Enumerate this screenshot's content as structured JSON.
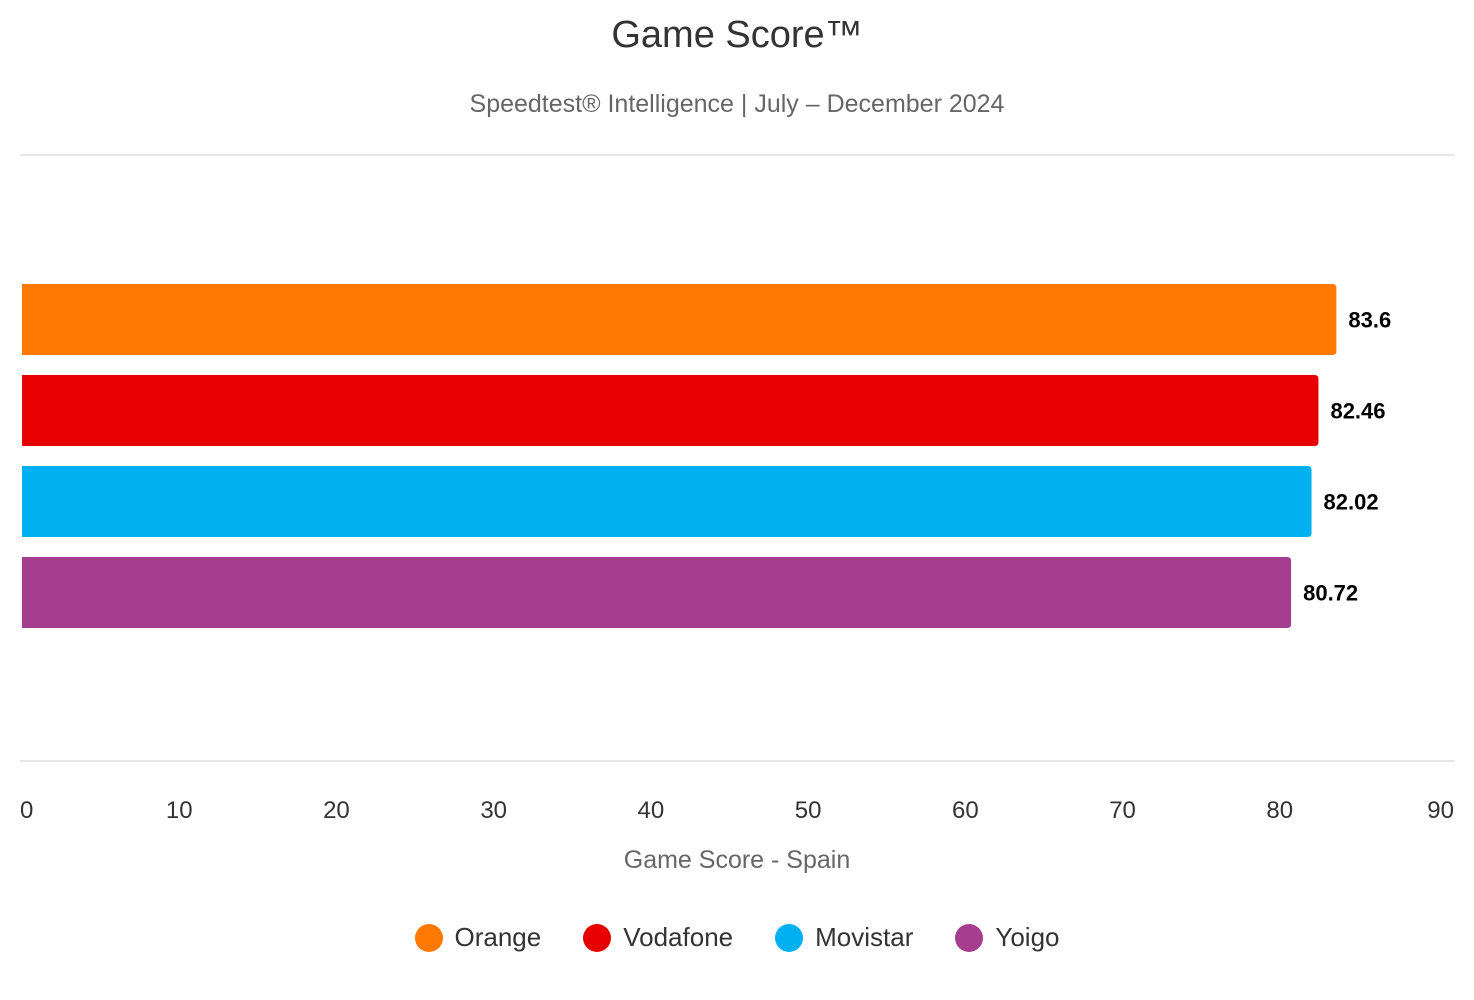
{
  "chart_data": {
    "type": "bar",
    "orientation": "horizontal",
    "title": "Game Score™",
    "subtitle": "Speedtest® Intelligence | July – December 2024",
    "xlabel": "Game Score - Spain",
    "xlim": [
      0,
      90
    ],
    "xticks": [
      "0",
      "10",
      "20",
      "30",
      "40",
      "50",
      "60",
      "70",
      "80",
      "90"
    ],
    "categories": [
      "Orange",
      "Vodafone",
      "Movistar",
      "Yoigo"
    ],
    "values": [
      83.6,
      82.46,
      82.02,
      80.72
    ],
    "value_labels": [
      "83.6",
      "82.46",
      "82.02",
      "80.72"
    ],
    "colors": [
      "#FF7900",
      "#E60000",
      "#00B0F0",
      "#A63E90"
    ],
    "legend_position": "bottom-center",
    "grid": false
  }
}
